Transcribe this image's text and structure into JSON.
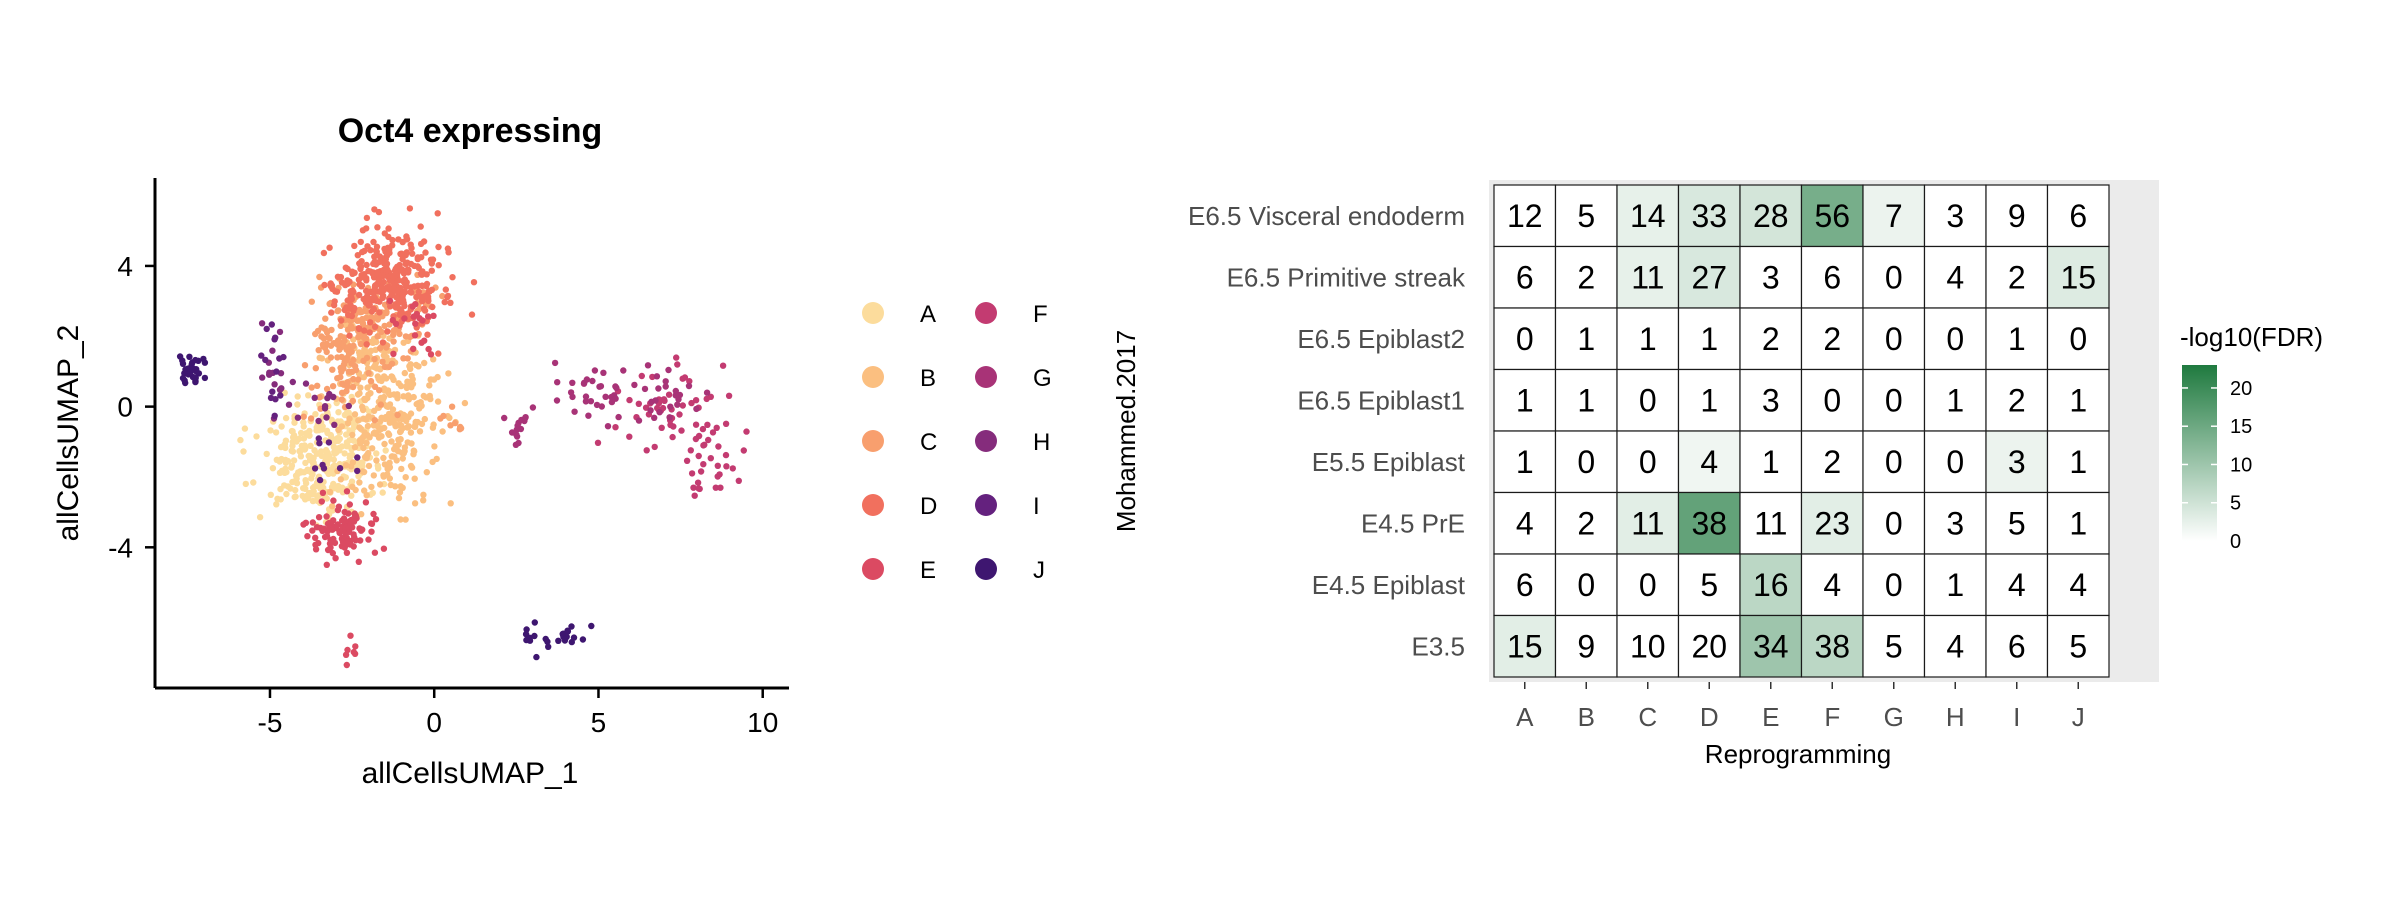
{
  "chart_data": [
    {
      "type": "scatter",
      "title": "Oct4 expressing",
      "xlabel": "allCellsUMAP_1",
      "ylabel": "allCellsUMAP_2",
      "xlim": [
        -8.5,
        10.8
      ],
      "ylim": [
        -8,
        6.5
      ],
      "xticks": [
        -5,
        0,
        5,
        10
      ],
      "xtick_labels": [
        "-5",
        "0",
        "5",
        "10"
      ],
      "yticks": [
        4,
        0,
        -4
      ],
      "ytick_labels": [
        "4",
        "0",
        "-4"
      ],
      "legend_position": "right",
      "series": [
        {
          "name": "A",
          "color": "#FCDC9C",
          "clusters": [
            {
              "cx": -3.6,
              "cy": -1.6,
              "sx": 1.1,
              "sy": 0.9,
              "n": 260
            },
            {
              "cx": -2.8,
              "cy": -0.6,
              "sx": 0.6,
              "sy": 0.6,
              "n": 60
            }
          ]
        },
        {
          "name": "B",
          "color": "#FBBF80",
          "clusters": [
            {
              "cx": -1.4,
              "cy": -0.5,
              "sx": 1.0,
              "sy": 1.4,
              "n": 260
            },
            {
              "cx": -1.8,
              "cy": 1.4,
              "sx": 0.9,
              "sy": 0.7,
              "n": 80
            }
          ]
        },
        {
          "name": "C",
          "color": "#F89F6E",
          "clusters": [
            {
              "cx": -2.6,
              "cy": 1.6,
              "sx": 0.8,
              "sy": 1.0,
              "n": 140
            },
            {
              "cx": -1.6,
              "cy": 2.6,
              "sx": 0.9,
              "sy": 0.7,
              "n": 90
            },
            {
              "cx": 0.6,
              "cy": -0.5,
              "sx": 0.3,
              "sy": 0.2,
              "n": 8
            }
          ]
        },
        {
          "name": "D",
          "color": "#F1705E",
          "clusters": [
            {
              "cx": -1.1,
              "cy": 3.6,
              "sx": 0.9,
              "sy": 0.9,
              "n": 260
            },
            {
              "cx": -2.4,
              "cy": 3.2,
              "sx": 0.6,
              "sy": 0.8,
              "n": 60
            }
          ]
        },
        {
          "name": "E",
          "color": "#DB4A62",
          "clusters": [
            {
              "cx": -2.8,
              "cy": -3.5,
              "sx": 0.6,
              "sy": 0.55,
              "n": 110
            },
            {
              "cx": -2.6,
              "cy": -7.0,
              "sx": 0.15,
              "sy": 0.4,
              "n": 7
            },
            {
              "cx": -0.7,
              "cy": 2.2,
              "sx": 0.5,
              "sy": 0.6,
              "n": 20
            }
          ]
        },
        {
          "name": "F",
          "color": "#C33B71",
          "clusters": [
            {
              "cx": 7.4,
              "cy": -0.2,
              "sx": 1.1,
              "sy": 0.8,
              "n": 55
            },
            {
              "cx": 8.4,
              "cy": -1.8,
              "sx": 0.7,
              "sy": 0.6,
              "n": 25
            }
          ]
        },
        {
          "name": "G",
          "color": "#A83377",
          "clusters": [
            {
              "cx": 4.8,
              "cy": 0.3,
              "sx": 0.9,
              "sy": 0.6,
              "n": 25
            },
            {
              "cx": 2.7,
              "cy": -0.6,
              "sx": 0.4,
              "sy": 0.4,
              "n": 15
            },
            {
              "cx": 6.9,
              "cy": 0.2,
              "sx": 1.0,
              "sy": 0.7,
              "n": 30
            }
          ]
        },
        {
          "name": "H",
          "color": "#852C7C",
          "clusters": [
            {
              "cx": -3.8,
              "cy": 0.1,
              "sx": 0.8,
              "sy": 0.5,
              "n": 15
            },
            {
              "cx": -4.8,
              "cy": 0.8,
              "sx": 0.35,
              "sy": 0.6,
              "n": 12
            }
          ]
        },
        {
          "name": "I",
          "color": "#64217E",
          "clusters": [
            {
              "cx": -4.8,
              "cy": 0.9,
              "sx": 0.3,
              "sy": 0.7,
              "n": 14
            },
            {
              "cx": -3.0,
              "cy": -1.2,
              "sx": 0.6,
              "sy": 0.5,
              "n": 10
            }
          ]
        },
        {
          "name": "J",
          "color": "#3E1670",
          "clusters": [
            {
              "cx": -7.4,
              "cy": 1.1,
              "sx": 0.28,
              "sy": 0.25,
              "n": 30
            },
            {
              "cx": 4.1,
              "cy": -6.5,
              "sx": 0.35,
              "sy": 0.2,
              "n": 14
            },
            {
              "cx": 3.0,
              "cy": -6.7,
              "sx": 0.25,
              "sy": 0.3,
              "n": 12
            }
          ]
        }
      ]
    },
    {
      "type": "heatmap",
      "xlabel": "Reprogramming",
      "ylabel": "Mohammed.2017",
      "columns": [
        "A",
        "B",
        "C",
        "D",
        "E",
        "F",
        "G",
        "H",
        "I",
        "J"
      ],
      "rows": [
        "E6.5 Visceral endoderm",
        "E6.5 Primitive streak",
        "E6.5 Epiblast2",
        "E6.5 Epiblast1",
        "E5.5 Epiblast",
        "E4.5 PrE",
        "E4.5 Epiblast",
        "E3.5"
      ],
      "counts": [
        [
          12,
          5,
          14,
          33,
          28,
          56,
          7,
          3,
          9,
          6
        ],
        [
          6,
          2,
          11,
          27,
          3,
          6,
          0,
          4,
          2,
          15
        ],
        [
          0,
          1,
          1,
          1,
          2,
          2,
          0,
          0,
          1,
          0
        ],
        [
          1,
          1,
          0,
          1,
          3,
          0,
          0,
          1,
          2,
          1
        ],
        [
          1,
          0,
          0,
          4,
          1,
          2,
          0,
          0,
          3,
          1
        ],
        [
          4,
          2,
          11,
          38,
          11,
          23,
          0,
          3,
          5,
          1
        ],
        [
          6,
          0,
          0,
          5,
          16,
          4,
          0,
          1,
          4,
          4
        ],
        [
          15,
          9,
          10,
          20,
          34,
          38,
          5,
          4,
          6,
          5
        ]
      ],
      "fill_values": [
        [
          0,
          0,
          2.5,
          4,
          4.5,
          14,
          2,
          0,
          0,
          0
        ],
        [
          0,
          0,
          2.5,
          4,
          0,
          0,
          0,
          0,
          0,
          3.5
        ],
        [
          0,
          0,
          0,
          0,
          0,
          0,
          0,
          0,
          0,
          0
        ],
        [
          0,
          0,
          0,
          0,
          0,
          0,
          0,
          0,
          0,
          0
        ],
        [
          0,
          0,
          0,
          1.5,
          0,
          0,
          0,
          0,
          2,
          0
        ],
        [
          0,
          0,
          3,
          16,
          0,
          3,
          0,
          0,
          0,
          0
        ],
        [
          0,
          0,
          0,
          0,
          7,
          0,
          0,
          0,
          0,
          0
        ],
        [
          3,
          0,
          0,
          0,
          10,
          7,
          0,
          0,
          0,
          0
        ]
      ],
      "colorbar": {
        "title": "-log10(FDR)",
        "min": 0,
        "max": 23,
        "ticks": [
          20,
          15,
          10,
          5,
          0
        ],
        "tick_labels": [
          "20",
          "15",
          "10",
          "5",
          "0"
        ],
        "color_low": "#FFFFFF",
        "color_high": "#1F7A3F"
      }
    }
  ]
}
